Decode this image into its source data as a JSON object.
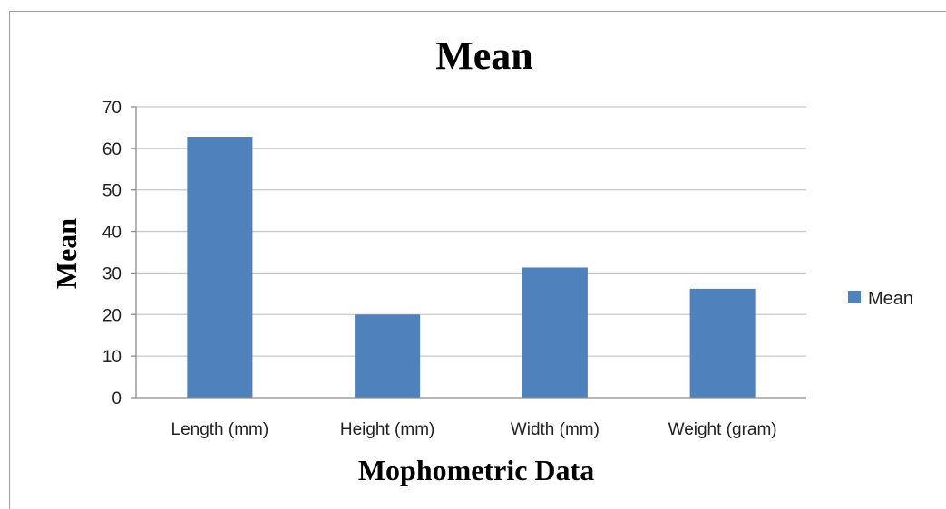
{
  "chart_data": {
    "type": "bar",
    "title": "Mean",
    "xlabel": "Mophometric Data",
    "ylabel": "Mean",
    "categories": [
      "Length (mm)",
      "Height (mm)",
      "Width (mm)",
      "Weight (gram)"
    ],
    "series": [
      {
        "name": "Mean",
        "values": [
          62.8,
          20.0,
          31.3,
          26.2
        ],
        "color": "#4f81bd"
      }
    ],
    "ylim": [
      0,
      70
    ],
    "yticks": [
      0,
      10,
      20,
      30,
      40,
      50,
      60,
      70
    ],
    "grid": true,
    "legend_position": "right"
  }
}
